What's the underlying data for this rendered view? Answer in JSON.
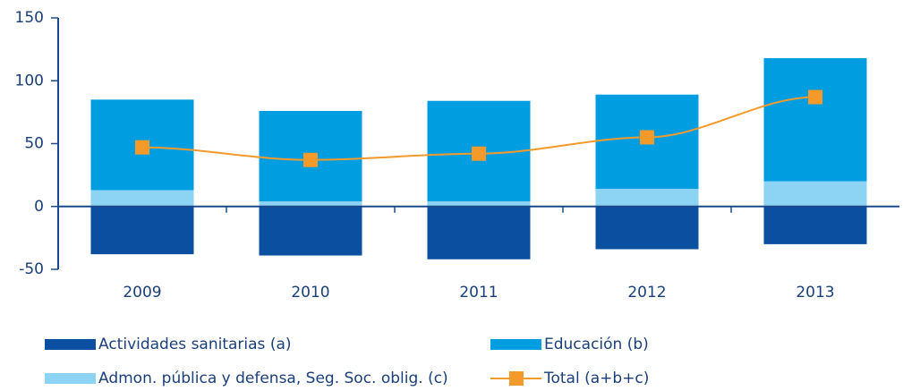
{
  "chart_data": {
    "type": "bar",
    "categories": [
      "2009",
      "2010",
      "2011",
      "2012",
      "2013"
    ],
    "series": [
      {
        "name": "Actividades sanitarias (a)",
        "color": "#0a4fa0",
        "values": [
          -38,
          -39,
          -42,
          -34,
          -30
        ]
      },
      {
        "name": "Educación (b)",
        "color": "#009ee0",
        "values": [
          72,
          72,
          80,
          75,
          98
        ]
      },
      {
        "name": "Admon. pública y defensa, Seg. Soc. oblig. (c)",
        "color": "#8dd3f3",
        "values": [
          13,
          4,
          4,
          14,
          20
        ]
      },
      {
        "name": "Total (a+b+c)",
        "color": "#f39a2b",
        "type": "line",
        "values": [
          47,
          37,
          42,
          55,
          87
        ]
      }
    ],
    "stacked": true,
    "ylim": [
      -50,
      150
    ],
    "yticks": [
      -50,
      0,
      50,
      100,
      150
    ]
  }
}
